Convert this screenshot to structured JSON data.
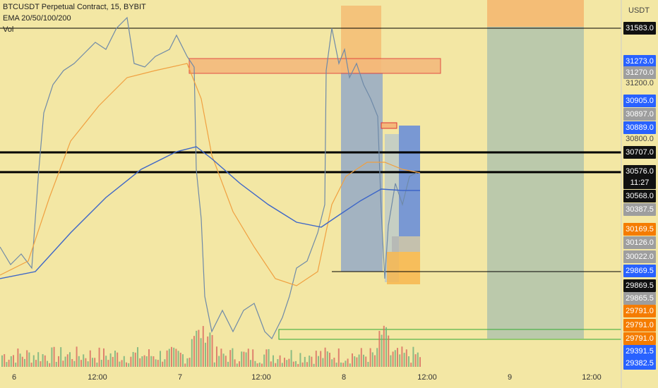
{
  "header": {
    "title": "BTCUSDT Perpetual Contract, 15, BYBIT",
    "indicator": "EMA 20/50/100/200",
    "volume": "Vol"
  },
  "price_axis": {
    "currency": "USDT",
    "labels": [
      {
        "text": "31583.0",
        "style": "black"
      },
      {
        "text": "31273.0",
        "style": "blue"
      },
      {
        "text": "31270.0",
        "style": "gray"
      },
      {
        "text": "31200.0",
        "style": "plain"
      },
      {
        "text": "30905.0",
        "style": "blue"
      },
      {
        "text": "30897.0",
        "style": "gray"
      },
      {
        "text": "30889.0",
        "style": "blue"
      },
      {
        "text": "30800.0",
        "style": "plain"
      },
      {
        "text": "30707.0",
        "style": "black"
      },
      {
        "text": "30576.0",
        "style": "black"
      },
      {
        "text": "11:27",
        "style": "black"
      },
      {
        "text": "30568.0",
        "style": "black"
      },
      {
        "text": "30387.5",
        "style": "gray"
      },
      {
        "text": "30169.5",
        "style": "orange"
      },
      {
        "text": "30126.0",
        "style": "gray"
      },
      {
        "text": "30022.0",
        "style": "gray"
      },
      {
        "text": "29869.5",
        "style": "blue"
      },
      {
        "text": "29869.5",
        "style": "black"
      },
      {
        "text": "29865.5",
        "style": "gray"
      },
      {
        "text": "29791.0",
        "style": "orange"
      },
      {
        "text": "29791.0",
        "style": "orange"
      },
      {
        "text": "29791.0",
        "style": "orange"
      },
      {
        "text": "29391.5",
        "style": "blue"
      },
      {
        "text": "29382.5",
        "style": "blue"
      }
    ]
  },
  "time_axis": {
    "labels": [
      "6",
      "12:00",
      "7",
      "12:00",
      "8",
      "12:00",
      "9",
      "12:00"
    ]
  }
}
